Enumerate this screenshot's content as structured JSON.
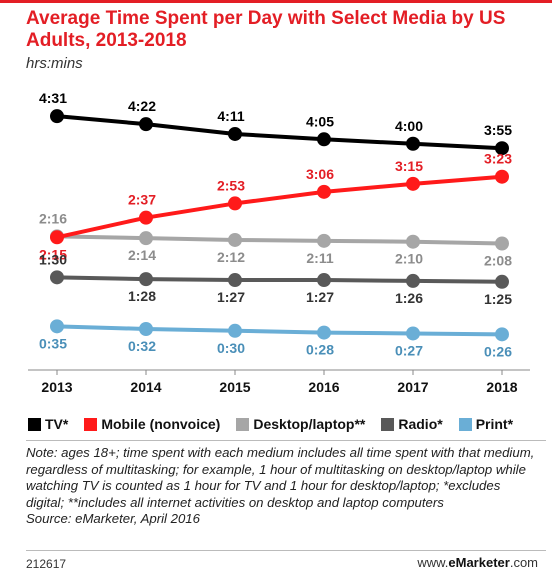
{
  "chart_data": {
    "type": "line",
    "title": "Average Time Spent per Day with Select Media by US Adults, 2013-2018",
    "subtitle": "hrs:mins",
    "x": [
      "2013",
      "2014",
      "2015",
      "2016",
      "2017",
      "2018"
    ],
    "series": [
      {
        "name": "TV*",
        "color": "#000000",
        "label_color": "#000000",
        "values": [
          271,
          262,
          251,
          245,
          240,
          235
        ],
        "labels": [
          "4:31",
          "4:22",
          "4:11",
          "4:05",
          "4:00",
          "3:55"
        ]
      },
      {
        "name": "Mobile (nonvoice)",
        "color": "#ff1a1a",
        "label_color": "#e31e25",
        "values": [
          135,
          157,
          173,
          186,
          195,
          203
        ],
        "labels": [
          "2:15",
          "2:37",
          "2:53",
          "3:06",
          "3:15",
          "3:23"
        ]
      },
      {
        "name": "Desktop/laptop**",
        "color": "#a6a6a6",
        "label_color": "#8c8c8c",
        "values": [
          136,
          134,
          132,
          131,
          130,
          128
        ],
        "labels": [
          "2:16",
          "2:14",
          "2:12",
          "2:11",
          "2:10",
          "2:08"
        ]
      },
      {
        "name": "Radio*",
        "color": "#595959",
        "label_color": "#333333",
        "values": [
          90,
          88,
          87,
          87,
          86,
          85
        ],
        "labels": [
          "1:30",
          "1:28",
          "1:27",
          "1:27",
          "1:26",
          "1:25"
        ]
      },
      {
        "name": "Print*",
        "color": "#6aaed6",
        "label_color": "#4a8fb8",
        "values": [
          35,
          32,
          30,
          28,
          27,
          26
        ],
        "labels": [
          "0:35",
          "0:32",
          "0:30",
          "0:28",
          "0:27",
          "0:26"
        ]
      }
    ],
    "grid": false,
    "legend": "bottom"
  },
  "note": {
    "text": "Note: ages 18+; time spent with each medium includes all time spent with that medium, regardless of multitasking; for example, 1 hour of multitasking on desktop/laptop while watching TV is counted as 1 hour for TV and 1 hour for desktop/laptop; *excludes digital; **includes all internet activities on desktop and laptop computers",
    "source": "Source: eMarketer, April 2016"
  },
  "footer": {
    "id": "212617",
    "brand_prefix": "www.",
    "brand_name": "eMarketer",
    "brand_suffix": ".com"
  },
  "colors": {
    "accent": "#e31e25"
  }
}
